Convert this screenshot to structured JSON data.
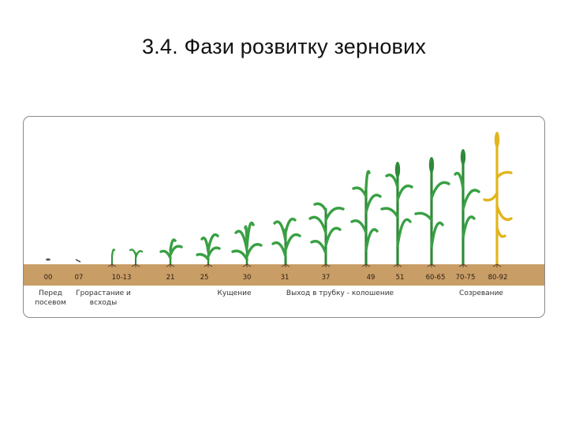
{
  "title": "3.4. Фази розвитку зернових",
  "colors": {
    "stem": "#2f8a38",
    "leaf": "#39a043",
    "ripe": "#e2b51d",
    "soil": "#c99d66"
  },
  "stage_codes": [
    "00",
    "07",
    "10-13",
    "21",
    "25",
    "30",
    "31",
    "37",
    "49",
    "51",
    "60-65",
    "70-75",
    "80-92"
  ],
  "phase_labels": {
    "before_sowing": "Перед\nпосевом",
    "germination": "Грорастание и\nвсходы",
    "tillering": "Кущение",
    "booting": "Выход в трубку - колошение",
    "ripening": "Созревание"
  }
}
